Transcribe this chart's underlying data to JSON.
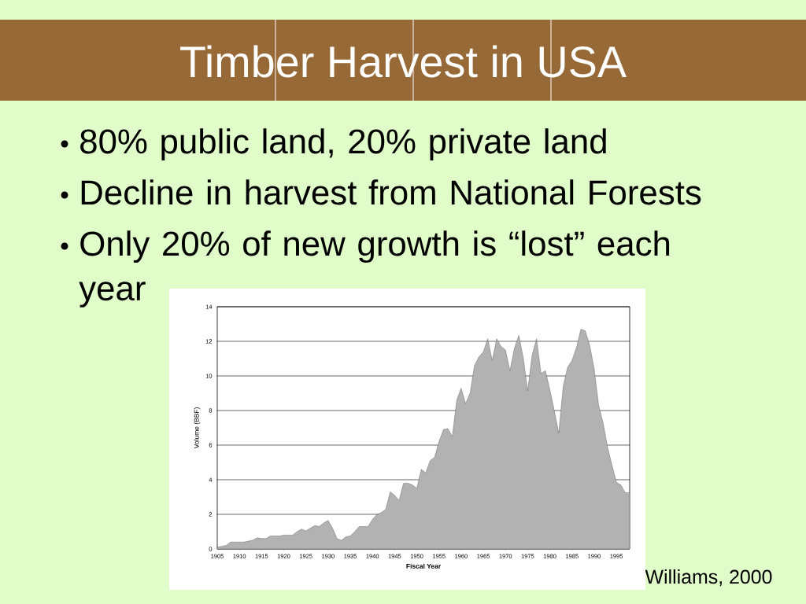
{
  "chart_data": {
    "type": "area",
    "title": "Timber Harvest in USA",
    "xlabel": "Fiscal Year",
    "ylabel": "Volume (BBF)",
    "x": [
      1905,
      1906,
      1907,
      1908,
      1909,
      1910,
      1911,
      1912,
      1913,
      1914,
      1915,
      1916,
      1917,
      1918,
      1919,
      1920,
      1921,
      1922,
      1923,
      1924,
      1925,
      1926,
      1927,
      1928,
      1929,
      1930,
      1931,
      1932,
      1933,
      1934,
      1935,
      1936,
      1937,
      1938,
      1939,
      1940,
      1941,
      1942,
      1943,
      1944,
      1945,
      1946,
      1947,
      1948,
      1949,
      1950,
      1951,
      1952,
      1953,
      1954,
      1955,
      1956,
      1957,
      1958,
      1959,
      1960,
      1961,
      1962,
      1963,
      1964,
      1965,
      1966,
      1967,
      1968,
      1969,
      1970,
      1971,
      1972,
      1973,
      1974,
      1975,
      1976,
      1977,
      1978,
      1979,
      1980,
      1981,
      1982,
      1983,
      1984,
      1985,
      1986,
      1987,
      1988,
      1989,
      1990,
      1991,
      1992,
      1993,
      1994,
      1995,
      1996,
      1997,
      1998
    ],
    "series": [
      {
        "color": "#b2b2b2",
        "values": [
          0.1,
          0.15,
          0.2,
          0.4,
          0.4,
          0.4,
          0.4,
          0.45,
          0.5,
          0.65,
          0.6,
          0.6,
          0.75,
          0.75,
          0.75,
          0.8,
          0.8,
          0.8,
          1.0,
          1.15,
          1.05,
          1.2,
          1.35,
          1.3,
          1.5,
          1.65,
          1.2,
          0.6,
          0.5,
          0.7,
          0.75,
          1.0,
          1.3,
          1.3,
          1.3,
          1.7,
          2.0,
          2.1,
          2.3,
          3.3,
          3.1,
          2.8,
          3.8,
          3.8,
          3.7,
          3.5,
          4.6,
          4.4,
          5.1,
          5.3,
          6.2,
          6.9,
          6.95,
          6.5,
          8.6,
          9.3,
          8.4,
          9.0,
          10.6,
          11.1,
          11.4,
          12.15,
          10.9,
          12.15,
          11.7,
          11.5,
          10.3,
          11.6,
          12.35,
          11.05,
          9.15,
          11.2,
          12.15,
          10.15,
          10.3,
          9.2,
          8.0,
          6.7,
          9.4,
          10.5,
          10.9,
          11.65,
          12.7,
          12.6,
          11.75,
          10.4,
          8.3,
          7.3,
          5.9,
          4.85,
          3.85,
          3.7,
          3.25,
          3.25
        ]
      }
    ],
    "xlim": [
      1905,
      1998
    ],
    "ylim": [
      0,
      14
    ],
    "xticks": [
      1905,
      1910,
      1915,
      1920,
      1925,
      1930,
      1935,
      1940,
      1945,
      1950,
      1955,
      1960,
      1965,
      1970,
      1975,
      1980,
      1985,
      1990,
      1995
    ],
    "yticks": [
      0,
      2,
      4,
      6,
      8,
      10,
      12,
      14
    ],
    "grid": "y",
    "annotations": [
      "80% public land, 20% private land",
      "Decline in harvest from National Forests",
      "Only 20% of new growth is “lost” each year",
      "Williams, 2000"
    ]
  }
}
